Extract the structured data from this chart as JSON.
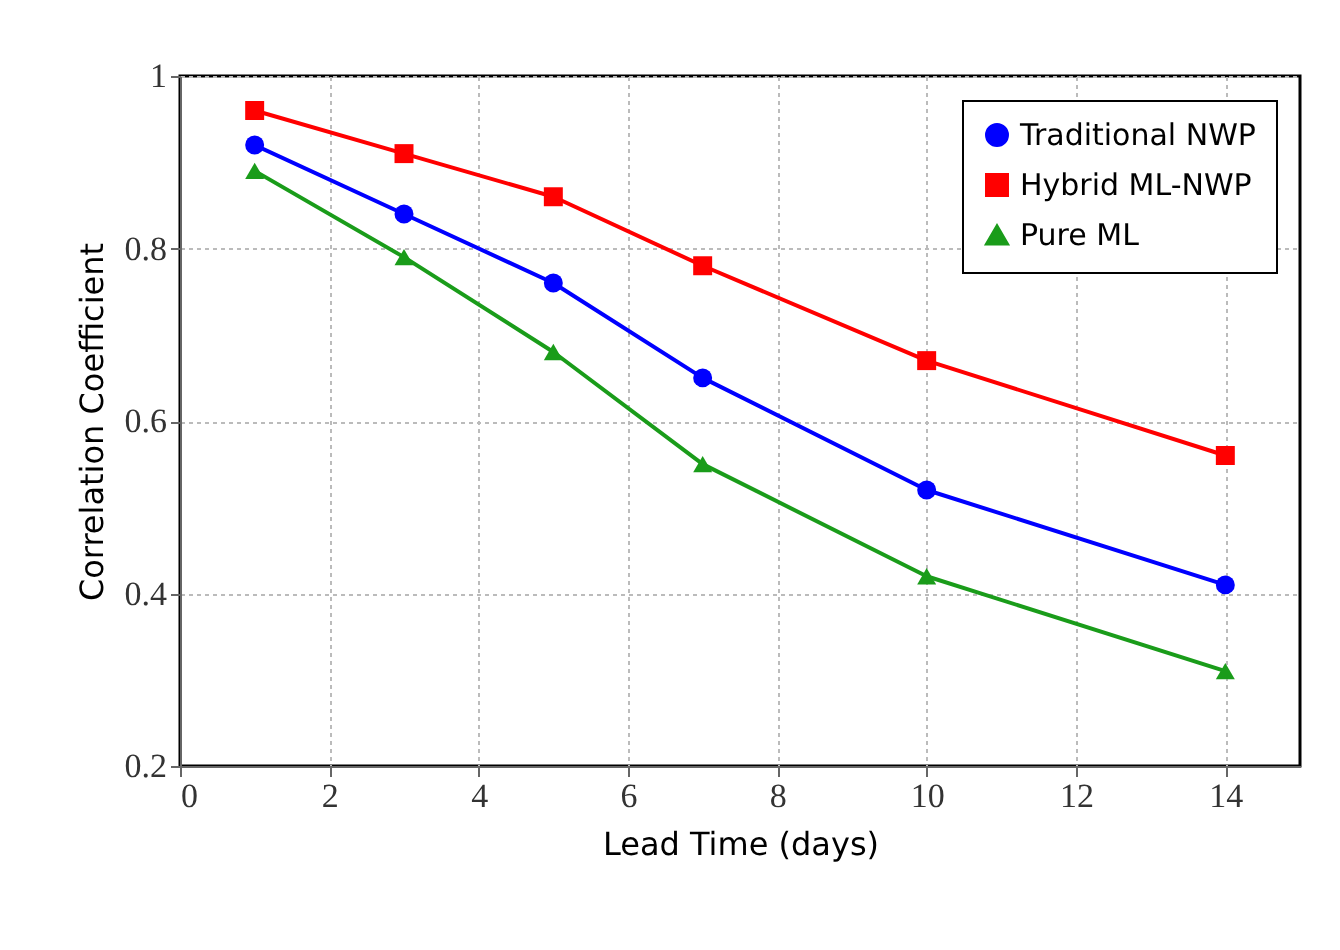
{
  "chart_data": {
    "type": "line",
    "xlabel": "Lead Time (days)",
    "ylabel": "Correlation Coefficient",
    "x": [
      1,
      3,
      5,
      7,
      10,
      14
    ],
    "series": [
      {
        "name": "Traditional NWP",
        "color": "#0000ff",
        "marker": "circle",
        "values": [
          0.92,
          0.84,
          0.76,
          0.65,
          0.52,
          0.41
        ]
      },
      {
        "name": "Hybrid ML-NWP",
        "color": "#ff0000",
        "marker": "square",
        "values": [
          0.96,
          0.91,
          0.86,
          0.78,
          0.67,
          0.56
        ]
      },
      {
        "name": "Pure ML",
        "color": "#1a9c1a",
        "marker": "triangle",
        "values": [
          0.89,
          0.79,
          0.68,
          0.55,
          0.42,
          0.31
        ]
      }
    ],
    "xlim": [
      0,
      15
    ],
    "xticks": [
      0,
      2,
      4,
      6,
      8,
      10,
      12,
      14
    ],
    "ylim": [
      0.2,
      1
    ],
    "yticks": [
      0.2,
      0.4,
      0.6,
      0.8,
      1
    ],
    "grid": true,
    "legend": "top right",
    "line_style": "solid"
  }
}
